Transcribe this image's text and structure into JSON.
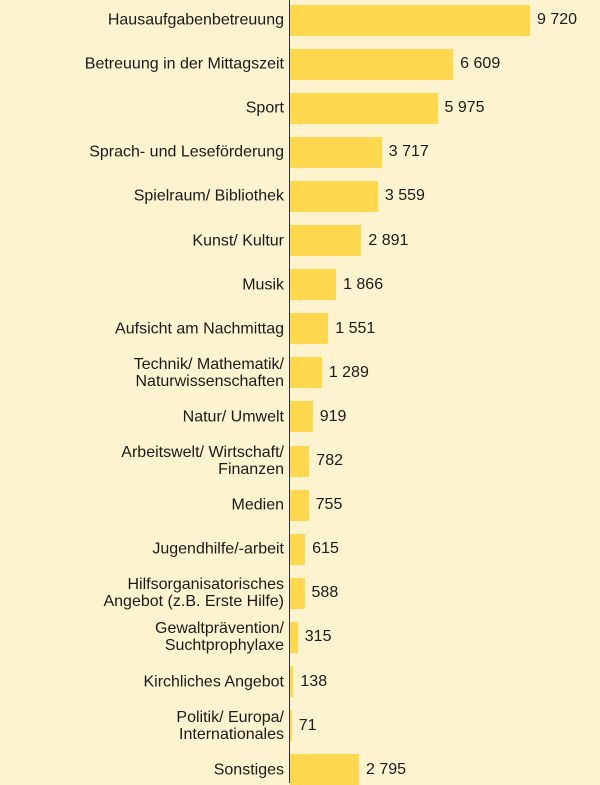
{
  "chart_data": {
    "type": "bar",
    "orientation": "horizontal",
    "color": "#ffd84f",
    "categories": [
      "Hausaufgabenbetreuung",
      "Betreuung in der Mittagszeit",
      "Sport",
      "Sprach- und Leseförderung",
      "Spielraum/ Bibliothek",
      "Kunst/ Kultur",
      "Musik",
      "Aufsicht am Nachmittag",
      "Technik/ Mathematik/\nNaturwissenschaften",
      "Natur/ Umwelt",
      "Arbeitswelt/ Wirtschaft/\nFinanzen",
      "Medien",
      "Jugendhilfe/-arbeit",
      "Hilfsorganisatorisches\nAngebot (z.B. Erste Hilfe)",
      "Gewaltprävention/\nSuchtprophylaxe",
      "Kirchliches Angebot",
      "Politik/ Europa/\nInternationales",
      "Sonstiges"
    ],
    "values": [
      9720,
      6609,
      5975,
      3717,
      3559,
      2891,
      1866,
      1551,
      1289,
      919,
      782,
      755,
      615,
      588,
      315,
      138,
      71,
      2795
    ],
    "value_labels": [
      "9 720",
      "6 609",
      "5 975",
      "3 717",
      "3 559",
      "2 891",
      "1 866",
      "1 551",
      "1 289",
      "919",
      "782",
      "755",
      "615",
      "588",
      "315",
      "138",
      "71",
      "2 795"
    ]
  }
}
